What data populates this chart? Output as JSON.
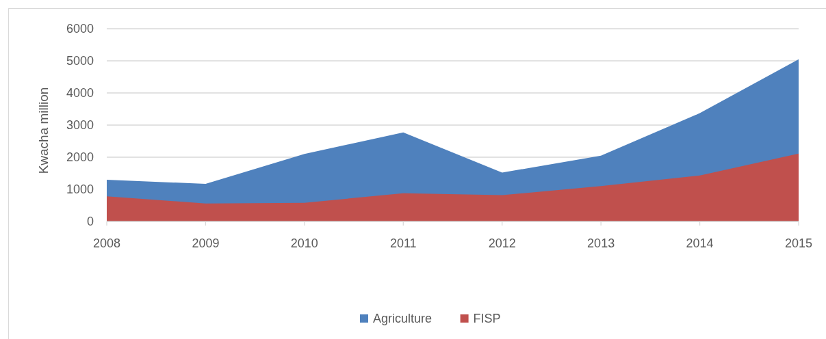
{
  "chart_data": {
    "type": "area",
    "ylabel": "Kwacha million",
    "categories": [
      "2008",
      "2009",
      "2010",
      "2011",
      "2012",
      "2013",
      "2014",
      "2015"
    ],
    "series": [
      {
        "name": "Agriculture",
        "color": "#4f81bd",
        "values": [
          1300,
          1170,
          2100,
          2770,
          1520,
          2050,
          3370,
          5050
        ]
      },
      {
        "name": "FISP",
        "color": "#c0504d",
        "values": [
          780,
          560,
          580,
          880,
          820,
          1100,
          1430,
          2110
        ]
      }
    ],
    "ylim": [
      0,
      6000
    ],
    "yticks": [
      0,
      1000,
      2000,
      3000,
      4000,
      5000,
      6000
    ],
    "grid": "y",
    "legend": "bottom"
  }
}
